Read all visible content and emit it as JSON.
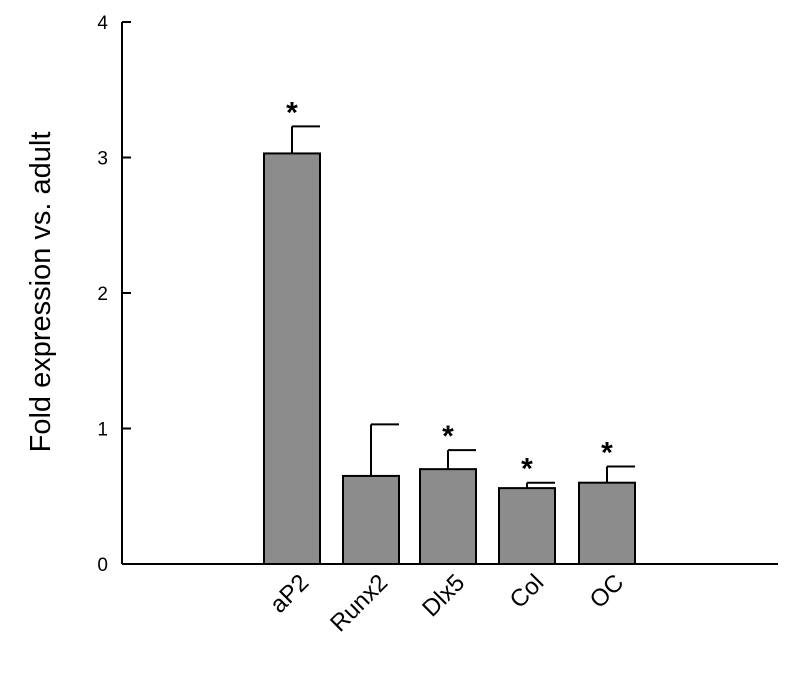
{
  "chart_data": {
    "type": "bar",
    "title": "",
    "xlabel": "",
    "ylabel": "Fold expression vs. adult",
    "ylim": [
      0,
      4
    ],
    "yticks": [
      "0",
      "1",
      "2",
      "3",
      "4"
    ],
    "categories": [
      "aP2",
      "Runx2",
      "Dlx5",
      "Col",
      "OC"
    ],
    "values": [
      3.03,
      0.65,
      0.7,
      0.56,
      0.6
    ],
    "errors": [
      0.2,
      0.38,
      0.14,
      0.04,
      0.12
    ],
    "significance": [
      "*",
      "",
      "*",
      "*",
      "*"
    ],
    "bar_color": "#8c8c8c",
    "grid": false,
    "legend": "none"
  }
}
